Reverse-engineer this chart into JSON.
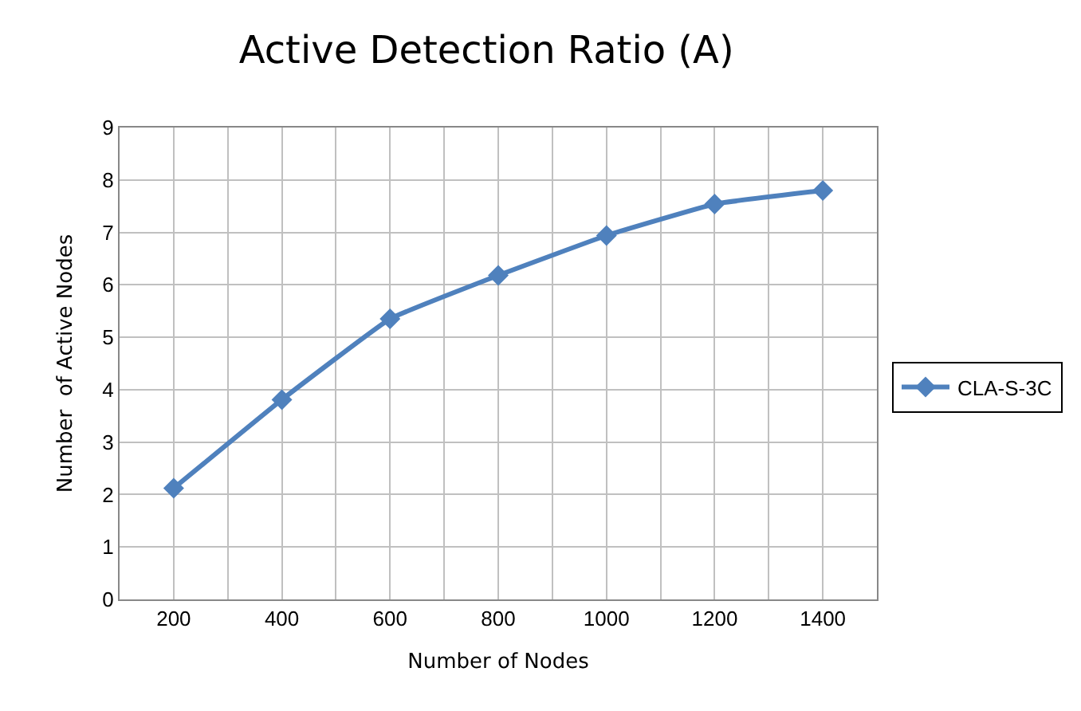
{
  "chart_data": {
    "type": "line",
    "title": "Active Detection Ratio (A)",
    "xlabel": "Number of Nodes",
    "ylabel": "Number  of Active Nodes",
    "x": [
      200,
      400,
      600,
      800,
      1000,
      1200,
      1400
    ],
    "series": [
      {
        "name": "CLA-S-3C",
        "color": "#4f81bd",
        "values": [
          2.12,
          3.81,
          5.35,
          6.18,
          6.94,
          7.54,
          7.8
        ]
      }
    ],
    "xlim": [
      100,
      1500
    ],
    "xticks": [
      {
        "value": 100,
        "label": null
      },
      200,
      {
        "value": 300,
        "label": null
      },
      400,
      {
        "value": 500,
        "label": null
      },
      600,
      {
        "value": 700,
        "label": null
      },
      800,
      {
        "value": 900,
        "label": null
      },
      1000,
      {
        "value": 1100,
        "label": null
      },
      1200,
      {
        "value": 1300,
        "label": null
      },
      1400,
      {
        "value": 1500,
        "label": null
      }
    ],
    "ylim": [
      0,
      9
    ],
    "yticks": [
      0,
      1,
      2,
      3,
      4,
      5,
      6,
      7,
      8,
      9
    ],
    "grid": true,
    "legend": "right",
    "marker": "diamond",
    "line_style": "solid"
  }
}
